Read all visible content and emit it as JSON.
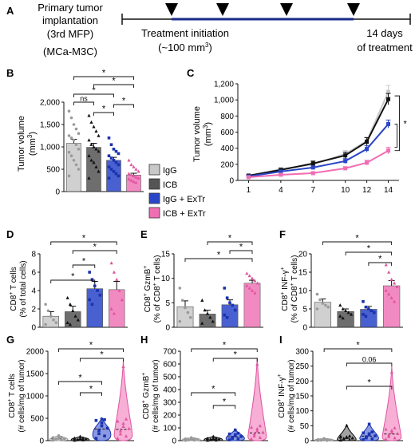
{
  "colors": {
    "IgG": "#c8c8c8",
    "ICB": "#555555",
    "IgG+ExTr": "#2a46c8",
    "ICB+ExTr": "#f06eb4",
    "timeline": "#1a2a8a"
  },
  "panels": {
    "A": {
      "label": "A",
      "line1": "Primary tumor",
      "line2": "implantation",
      "line3": "(3rd MFP)",
      "line4": "(MCa-M3C)",
      "init1": "Treatment initiation",
      "init2": "(~100 mm",
      "init_sup": "3",
      "init_close": ")",
      "end1": "14 days",
      "end2": "of treatment"
    },
    "B": {
      "label": "B"
    },
    "C": {
      "label": "C"
    },
    "D": {
      "label": "D"
    },
    "E": {
      "label": "E"
    },
    "F": {
      "label": "F"
    },
    "G": {
      "label": "G"
    },
    "H": {
      "label": "H"
    },
    "I": {
      "label": "I"
    }
  },
  "legend": [
    "IgG",
    "ICB",
    "IgG + ExTr",
    "ICB + ExTr"
  ],
  "chart_data": [
    {
      "id": "B",
      "type": "bar",
      "categories": [
        "IgG",
        "ICB",
        "IgG+ExTr",
        "ICB+ExTr"
      ],
      "values": [
        1080,
        990,
        700,
        370
      ],
      "errors": [
        90,
        90,
        65,
        40
      ],
      "points": [
        [
          1800,
          1650,
          1500,
          1400,
          1300,
          1250,
          1200,
          1150,
          1050,
          950,
          880,
          800,
          700,
          600,
          500,
          350
        ],
        [
          1700,
          1550,
          1450,
          1350,
          1250,
          1150,
          1050,
          1000,
          950,
          900,
          800,
          700,
          650,
          550,
          450,
          300
        ],
        [
          1200,
          1050,
          950,
          900,
          850,
          800,
          750,
          700,
          650,
          600,
          550,
          500,
          450,
          400,
          350,
          300
        ],
        [
          700,
          600,
          550,
          500,
          450,
          400,
          380,
          350,
          320,
          300,
          280,
          250,
          220,
          200
        ]
      ],
      "ylabel": "Tumor volume",
      "ylabel_unit": "(mm",
      "ylabel_sup": "3",
      "ylabel_close": ")",
      "yticks": [
        "0",
        "500",
        "1,000",
        "1,500",
        "2,000"
      ],
      "ylim": [
        0,
        2000
      ],
      "sig": [
        "ns",
        "*",
        "*",
        "*",
        "*",
        "*"
      ]
    },
    {
      "id": "C",
      "type": "line",
      "x": [
        1,
        4,
        7,
        10,
        12,
        14
      ],
      "series": [
        {
          "name": "IgG",
          "values": [
            55,
            140,
            200,
            330,
            490,
            1100
          ],
          "errors": [
            10,
            20,
            30,
            40,
            50,
            80
          ]
        },
        {
          "name": "ICB",
          "values": [
            60,
            130,
            210,
            310,
            480,
            1010
          ],
          "errors": [
            10,
            20,
            30,
            40,
            50,
            70
          ]
        },
        {
          "name": "IgG + ExTr",
          "values": [
            50,
            110,
            160,
            240,
            390,
            700
          ],
          "errors": [
            8,
            15,
            20,
            30,
            40,
            50
          ]
        },
        {
          "name": "ICB + ExTr",
          "values": [
            40,
            70,
            90,
            150,
            220,
            370
          ],
          "errors": [
            8,
            10,
            15,
            20,
            30,
            40
          ]
        }
      ],
      "ylabel": "Tumor volume",
      "ylabel_unit": "(mm",
      "ylabel_sup": "3",
      "ylabel_close": ")",
      "xticks": [
        "1",
        "4",
        "7",
        "10",
        "12",
        "14"
      ],
      "yticks": [
        "0",
        "200",
        "400",
        "600",
        "800",
        "1,000",
        "1,200"
      ],
      "ylim": [
        0,
        1200
      ],
      "sig": [
        "*",
        "*"
      ]
    },
    {
      "id": "D",
      "type": "bar",
      "categories": [
        "IgG",
        "ICB",
        "IgG+ExTr",
        "ICB+ExTr"
      ],
      "values": [
        1.2,
        1.7,
        4.2,
        4.1
      ],
      "errors": [
        0.5,
        0.6,
        0.8,
        0.9
      ],
      "points": [
        [
          2.5,
          1.8,
          1.2,
          0.8,
          0.5,
          0.3
        ],
        [
          3.2,
          2.5,
          1.8,
          1.2,
          0.8,
          0.5,
          0.3
        ],
        [
          6,
          5.2,
          4.5,
          4,
          3.5,
          3,
          2.5
        ],
        [
          7,
          6,
          5.2,
          4,
          3,
          2,
          1.5
        ]
      ],
      "ylabel1": "CD8",
      "ylabel1_sup": "+",
      "ylabel1_rest": " T cells",
      "ylabel2": "(% of total cells)",
      "yticks": [
        "0",
        "2",
        "4",
        "6",
        "8"
      ],
      "ylim": [
        0,
        8
      ],
      "sig": [
        "*",
        "*",
        "*",
        "*"
      ]
    },
    {
      "id": "E",
      "type": "bar",
      "categories": [
        "IgG",
        "ICB",
        "IgG+ExTr",
        "ICB+ExTr"
      ],
      "values": [
        4.2,
        2.7,
        4.6,
        9.0
      ],
      "errors": [
        1.2,
        0.8,
        1.0,
        0.6
      ],
      "points": [
        [
          8,
          5.5,
          4,
          3,
          2,
          1.2
        ],
        [
          5.5,
          3.5,
          2.8,
          2,
          1.2,
          0.8
        ],
        [
          8,
          6,
          5,
          4.5,
          3.5,
          2.5,
          2
        ],
        [
          11,
          10.5,
          10,
          9.5,
          9,
          8.5,
          8,
          7.5,
          7
        ]
      ],
      "ylabel1": "CD8",
      "ylabel1_sup": "+",
      "ylabel1_mid": " GzmB",
      "ylabel1_sup2": "+",
      "ylabel2": "(% of CD8",
      "ylabel2_sup": "+",
      "ylabel2_rest": " T cells)",
      "yticks": [
        "0",
        "5",
        "10",
        "15"
      ],
      "ylim": [
        0,
        15
      ],
      "sig": [
        "*",
        "*",
        "*"
      ]
    },
    {
      "id": "F",
      "type": "bar",
      "categories": [
        "IgG",
        "ICB",
        "IgG+ExTr",
        "ICB+ExTr"
      ],
      "values": [
        6.8,
        4.3,
        4.9,
        11.3
      ],
      "errors": [
        0.9,
        0.7,
        0.8,
        1.4
      ],
      "points": [
        [
          9,
          7.5,
          6.5,
          6,
          5.5,
          5
        ],
        [
          6,
          5,
          4.5,
          4,
          3.5,
          3,
          2.5
        ],
        [
          7,
          5.5,
          5,
          4.5,
          4,
          3.5,
          3
        ],
        [
          17,
          15,
          13,
          12,
          11,
          10,
          9,
          8,
          7
        ]
      ],
      "ylabel1": "CD8",
      "ylabel1_sup": "+",
      "ylabel1_mid": " INF-γ",
      "ylabel1_sup2": "+",
      "ylabel2": "(% of CD8",
      "ylabel2_sup": "+",
      "ylabel2_rest": " T cells)",
      "yticks": [
        "0",
        "5",
        "10",
        "15",
        "20"
      ],
      "ylim": [
        0,
        20
      ],
      "sig": [
        "*",
        "*",
        "*"
      ]
    },
    {
      "id": "G",
      "type": "violin",
      "categories": [
        "IgG",
        "ICB",
        "IgG+ExTr",
        "ICB+ExTr"
      ],
      "maxima": [
        120,
        100,
        520,
        1800
      ],
      "medians": [
        40,
        30,
        260,
        250
      ],
      "ylabel1": "CD8",
      "ylabel1_sup": "+",
      "ylabel1_rest": " T cells",
      "ylabel2": "(# cells/mg of tumor)",
      "yticks": [
        "0",
        "500",
        "1000",
        "1500",
        "2000"
      ],
      "ylim": [
        0,
        2000
      ],
      "sig": [
        "*",
        "*",
        "*",
        "*"
      ]
    },
    {
      "id": "H",
      "type": "violin",
      "categories": [
        "IgG",
        "ICB",
        "IgG+ExTr",
        "ICB+ExTr"
      ],
      "maxima": [
        25,
        35,
        90,
        650
      ],
      "medians": [
        8,
        10,
        30,
        60
      ],
      "ylabel1": "CD8",
      "ylabel1_sup": "+",
      "ylabel1_mid": " GzmB",
      "ylabel1_sup2": "+",
      "ylabel2": "(# cells/mg of tumor)",
      "yticks": [
        "0",
        "100",
        "200",
        "300",
        "400",
        "500",
        "600",
        "700"
      ],
      "ylim": [
        0,
        700
      ],
      "sig": [
        "*",
        "*",
        "*",
        "*"
      ]
    },
    {
      "id": "I",
      "type": "violin",
      "categories": [
        "IgG",
        "ICB",
        "IgG+ExTr",
        "ICB+ExTr"
      ],
      "maxima": [
        8,
        55,
        60,
        250
      ],
      "medians": [
        2,
        8,
        15,
        22
      ],
      "ylabel1": "CD8",
      "ylabel1_sup": "+",
      "ylabel1_mid": " INF-γ",
      "ylabel1_sup2": "+",
      "ylabel2": "(# cells/mg of tumor)",
      "yticks": [
        "0",
        "50",
        "100",
        "150",
        "200",
        "250",
        "300"
      ],
      "ylim": [
        0,
        300
      ],
      "sig": [
        "*",
        "0.06",
        "*"
      ]
    }
  ]
}
